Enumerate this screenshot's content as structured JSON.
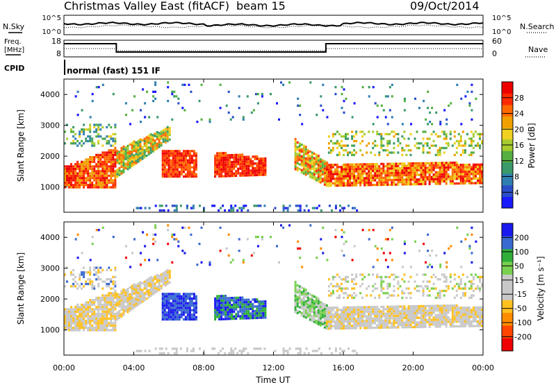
{
  "header": {
    "station": "Christmas Valley East (fitACF)",
    "beam": "beam 15",
    "date": "09/Oct/2014"
  },
  "top_panels": {
    "nsky_label": "N.Sky",
    "nsky_ticks": [
      "10^5",
      "10^0"
    ],
    "nsearch_label": "N.Search",
    "nsearch_ticks": [
      "10^5",
      "10^0"
    ],
    "freq_label_1": "Freq.",
    "freq_label_2": "[MHz]",
    "freq_ticks": [
      "18",
      "8"
    ],
    "nave_label": "Nave",
    "nave_ticks": [
      "60",
      "0"
    ],
    "cpid_label": "CPID",
    "cpid_text": "normal (fast) 151 IF"
  },
  "colors": {
    "power_scale": [
      "#1a1aff",
      "#2a4fc8",
      "#2f7fb0",
      "#3a9a6a",
      "#55b040",
      "#a6cc30",
      "#f0d020",
      "#f0a000",
      "#ff6a00",
      "#ff2a00",
      "#ee0000"
    ],
    "velocity_scale": [
      "#ee0000",
      "#ff4500",
      "#ff8c00",
      "#ffc020",
      "#c8c8c8",
      "#c8c8c8",
      "#7ad050",
      "#2fae3a",
      "#3a6ad0",
      "#1a1aee"
    ]
  },
  "chart_data": [
    {
      "type": "heatmap",
      "name": "power",
      "ylabel": "Slant Range [km]",
      "yticks": [
        "4000",
        "3000",
        "2000",
        "1000"
      ],
      "ylim": [
        180,
        4500
      ],
      "xlim_hours": [
        0,
        24
      ],
      "colorbar_label": "Power [dB]",
      "colorbar_ticks": [
        "28",
        "24",
        "20",
        "16",
        "12",
        "8",
        "4"
      ],
      "colorbar_range": [
        0,
        30
      ]
    },
    {
      "type": "heatmap",
      "name": "velocity",
      "ylabel": "Slant Range [km]",
      "yticks": [
        "4000",
        "3000",
        "2000",
        "1000"
      ],
      "ylim": [
        180,
        4500
      ],
      "xlim_hours": [
        0,
        24
      ],
      "xlabel": "Time UT",
      "xticks": [
        "00:00",
        "04:00",
        "08:00",
        "12:00",
        "16:00",
        "20:00",
        "00:00"
      ],
      "colorbar_label": "Velocity [m s⁻¹]",
      "colorbar_ticks": [
        "200",
        "100",
        "50",
        "15",
        "-15",
        "-50",
        "-100",
        "-200"
      ]
    }
  ]
}
